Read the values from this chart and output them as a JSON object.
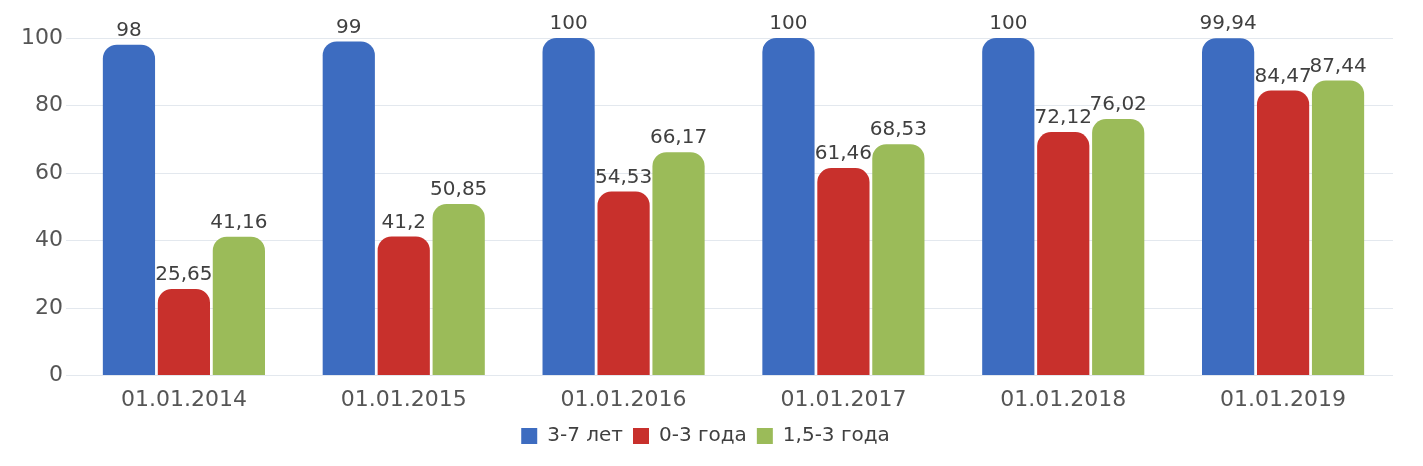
{
  "chart_data": {
    "type": "bar",
    "categories": [
      "01.01.2014",
      "01.01.2015",
      "01.01.2016",
      "01.01.2017",
      "01.01.2018",
      "01.01.2019"
    ],
    "series": [
      {
        "name": "3-7 лет",
        "color": "#3d6cc0",
        "values": [
          98,
          99,
          100,
          100,
          100,
          99.94
        ],
        "value_labels": [
          "98",
          "99",
          "100",
          "100",
          "100",
          "99,94"
        ]
      },
      {
        "name": "0-3 года",
        "color": "#c8302c",
        "values": [
          25.65,
          41.2,
          54.53,
          61.46,
          72.12,
          84.47
        ],
        "value_labels": [
          "25,65",
          "41,2",
          "54,53",
          "61,46",
          "72,12",
          "84,47"
        ]
      },
      {
        "name": "1,5-3 года",
        "color": "#9bbb59",
        "values": [
          41.16,
          50.85,
          66.17,
          68.53,
          76.02,
          87.44
        ],
        "value_labels": [
          "41,16",
          "50,85",
          "66,17",
          "68,53",
          "76,02",
          "87,44"
        ]
      }
    ],
    "ylim": [
      0,
      100
    ],
    "yticks": [
      0,
      20,
      40,
      60,
      80,
      100
    ],
    "grid": "y",
    "legend": "bottom"
  }
}
